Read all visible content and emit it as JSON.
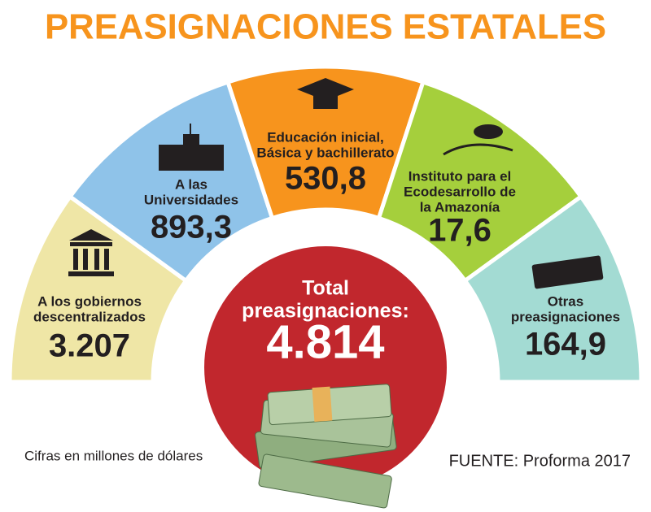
{
  "title": "PREASIGNACIONES ESTATALES",
  "segments": [
    {
      "label_lines": [
        "A los gobiernos",
        "descentralizados"
      ],
      "value": "3.207"
    },
    {
      "label_lines": [
        "A las",
        "Universidades"
      ],
      "value": "893,3"
    },
    {
      "label_lines": [
        "Educación inicial,",
        "Básica y bachillerato"
      ],
      "value": "530,8"
    },
    {
      "label_lines": [
        "Instituto para el",
        "Ecodesarrollo de",
        "la Amazonía"
      ],
      "value": "17,6"
    },
    {
      "label_lines": [
        "Otras",
        "preasignaciones"
      ],
      "value": "164,9"
    }
  ],
  "total": {
    "label_lines": [
      "Total",
      "preasignaciones:"
    ],
    "value": "4.814"
  },
  "note": "Cifras en millones de dólares",
  "source": "FUENTE: Proforma 2017"
}
